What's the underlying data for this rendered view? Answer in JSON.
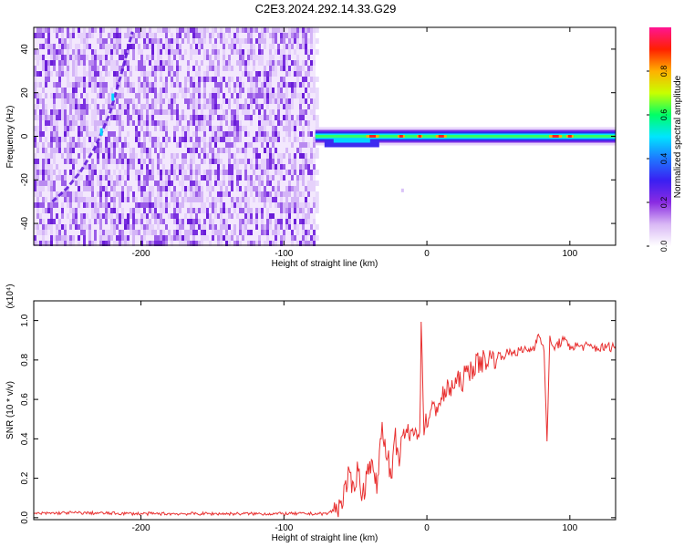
{
  "title": "C2E3.2024.292.14.33.G29",
  "chart_data": [
    {
      "type": "heatmap",
      "xlabel": "Height of straight line (km)",
      "ylabel": "Frequency (Hz)",
      "xlim": [
        -275,
        132
      ],
      "ylim": [
        -50,
        50
      ],
      "xticks": [
        -200,
        -100,
        0,
        100
      ],
      "yticks": [
        -40,
        -20,
        0,
        20,
        40
      ],
      "colorbar": {
        "label": "Normalized spectral amplitude",
        "range": [
          0,
          1
        ],
        "ticks": [
          "0.0",
          "0.2",
          "0.4",
          "0.6",
          "0.8"
        ],
        "colormap": [
          "#ffffff",
          "#d9b8f5",
          "#8a2be2",
          "#3a1ff2",
          "#1e78ff",
          "#00e5ff",
          "#00ff66",
          "#c8ff00",
          "#ffb000",
          "#ff2000",
          "#ff1493"
        ]
      },
      "noise_region_x": [
        -275,
        -78
      ],
      "signal_x": [
        -78,
        132
      ],
      "signal_frequency_hz": 0,
      "tone_track": {
        "x": [
          -262,
          -252,
          -242,
          -232,
          -222,
          -214,
          -206
        ],
        "y": [
          -30,
          -24,
          -16,
          -5,
          10,
          28,
          48
        ]
      },
      "grid": false,
      "legend": "colorbar right"
    },
    {
      "type": "line",
      "xlabel": "Height of straight line (km)",
      "ylabel": "SNR (10 * v/v)",
      "y_multiplier_label": "(x10⁴)",
      "xlim": [
        -275,
        132
      ],
      "ylim": [
        -0.01,
        1.1
      ],
      "xticks": [
        -200,
        -100,
        0,
        100
      ],
      "yticks": [
        0.0,
        0.2,
        0.4,
        0.6,
        0.8,
        1.0
      ],
      "line_color": "#e83030",
      "series": [
        {
          "x": [
            -275,
            -250,
            -200,
            -150,
            -100,
            -80,
            -70,
            -62,
            -58,
            -55,
            -52,
            -48,
            -45,
            -40,
            -35,
            -32,
            -28,
            -25,
            -22,
            -20,
            -18,
            -15,
            -12,
            -8,
            -5,
            -4,
            -2,
            0,
            5,
            10,
            15,
            20,
            25,
            30,
            35,
            40,
            50,
            60,
            70,
            75,
            78,
            80,
            82,
            84,
            86,
            88,
            90,
            95,
            100,
            110,
            120,
            132
          ],
          "y": [
            0.02,
            0.025,
            0.02,
            0.02,
            0.02,
            0.02,
            0.02,
            0.05,
            0.12,
            0.2,
            0.15,
            0.25,
            0.1,
            0.3,
            0.15,
            0.45,
            0.35,
            0.18,
            0.4,
            0.3,
            0.35,
            0.45,
            0.4,
            0.48,
            0.38,
            1.0,
            0.45,
            0.5,
            0.55,
            0.6,
            0.65,
            0.68,
            0.7,
            0.75,
            0.78,
            0.8,
            0.82,
            0.84,
            0.85,
            0.86,
            0.95,
            0.88,
            0.84,
            0.4,
            0.9,
            0.86,
            0.87,
            0.9,
            0.87,
            0.87,
            0.86,
            0.87
          ]
        }
      ],
      "grid": false
    }
  ]
}
